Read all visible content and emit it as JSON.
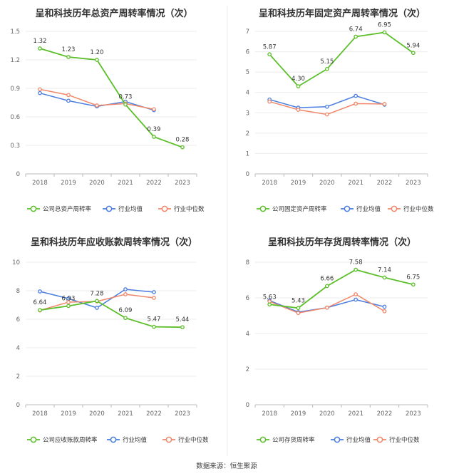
{
  "source": "数据来源：恒生聚源",
  "colors": {
    "company": "#5cbf2a",
    "industry_avg": "#4a7de0",
    "industry_median": "#f0876a"
  },
  "chart_data": [
    {
      "type": "line",
      "title": "呈和科技历年总资产周转率情况（次）",
      "x": [
        "2018",
        "2019",
        "2020",
        "2021",
        "2022",
        "2023"
      ],
      "ylim": [
        0,
        1.5
      ],
      "yticks": [
        "0",
        "0.3",
        "0.6",
        "0.9",
        "1.2",
        "1.5"
      ],
      "series": [
        {
          "name": "公司总资产周转率",
          "values": [
            1.32,
            1.23,
            1.2,
            0.73,
            0.39,
            0.28
          ],
          "labels": [
            "1.32",
            "1.23",
            "1.20",
            "0.73",
            "0.39",
            "0.28"
          ]
        },
        {
          "name": "行业均值",
          "values": [
            0.85,
            0.77,
            0.71,
            0.76,
            0.67,
            null
          ]
        },
        {
          "name": "行业中位数",
          "values": [
            0.89,
            0.83,
            0.72,
            0.74,
            0.68,
            null
          ]
        }
      ]
    },
    {
      "type": "line",
      "title": "呈和科技历年固定资产周转率情况（次）",
      "x": [
        "2018",
        "2019",
        "2020",
        "2021",
        "2022",
        "2023"
      ],
      "ylim": [
        0,
        7
      ],
      "yticks": [
        "0",
        "1",
        "2",
        "3",
        "4",
        "5",
        "6",
        "7"
      ],
      "series": [
        {
          "name": "公司固定资产周转率",
          "values": [
            5.87,
            4.3,
            5.15,
            6.74,
            6.95,
            5.94
          ],
          "labels": [
            "5.87",
            "4.30",
            "5.15",
            "6.74",
            "6.95",
            "5.94"
          ]
        },
        {
          "name": "行业均值",
          "values": [
            3.65,
            3.25,
            3.3,
            3.83,
            3.4,
            null
          ]
        },
        {
          "name": "行业中位数",
          "values": [
            3.55,
            3.15,
            2.92,
            3.45,
            3.43,
            null
          ]
        }
      ]
    },
    {
      "type": "line",
      "title": "呈和科技历年应收账款周转率情况（次）",
      "x": [
        "2018",
        "2019",
        "2020",
        "2021",
        "2022",
        "2023"
      ],
      "ylim": [
        0,
        10
      ],
      "yticks": [
        "0",
        "2",
        "4",
        "6",
        "8",
        "10"
      ],
      "series": [
        {
          "name": "公司应收账款周转率",
          "values": [
            6.64,
            6.93,
            7.28,
            6.09,
            5.47,
            5.44
          ],
          "labels": [
            "6.64",
            "6.93",
            "7.28",
            "6.09",
            "5.47",
            "5.44"
          ]
        },
        {
          "name": "行业均值",
          "values": [
            7.95,
            7.45,
            6.8,
            8.1,
            7.9,
            null
          ]
        },
        {
          "name": "行业中位数",
          "values": [
            6.62,
            7.2,
            7.25,
            7.75,
            7.5,
            null
          ]
        }
      ]
    },
    {
      "type": "line",
      "title": "呈和科技历年存货周转率情况（次）",
      "x": [
        "2018",
        "2019",
        "2020",
        "2021",
        "2022",
        "2023"
      ],
      "ylim": [
        0,
        8
      ],
      "yticks": [
        "0",
        "2",
        "4",
        "6",
        "8"
      ],
      "series": [
        {
          "name": "公司存货周转率",
          "values": [
            5.63,
            5.43,
            6.66,
            7.58,
            7.14,
            6.75
          ],
          "labels": [
            "5.63",
            "5.43",
            "6.66",
            "7.58",
            "7.14",
            "6.75"
          ]
        },
        {
          "name": "行业均值",
          "values": [
            5.85,
            5.2,
            5.45,
            5.9,
            5.5,
            null
          ]
        },
        {
          "name": "行业中位数",
          "values": [
            5.8,
            5.15,
            5.45,
            6.2,
            5.25,
            null
          ]
        }
      ]
    }
  ]
}
